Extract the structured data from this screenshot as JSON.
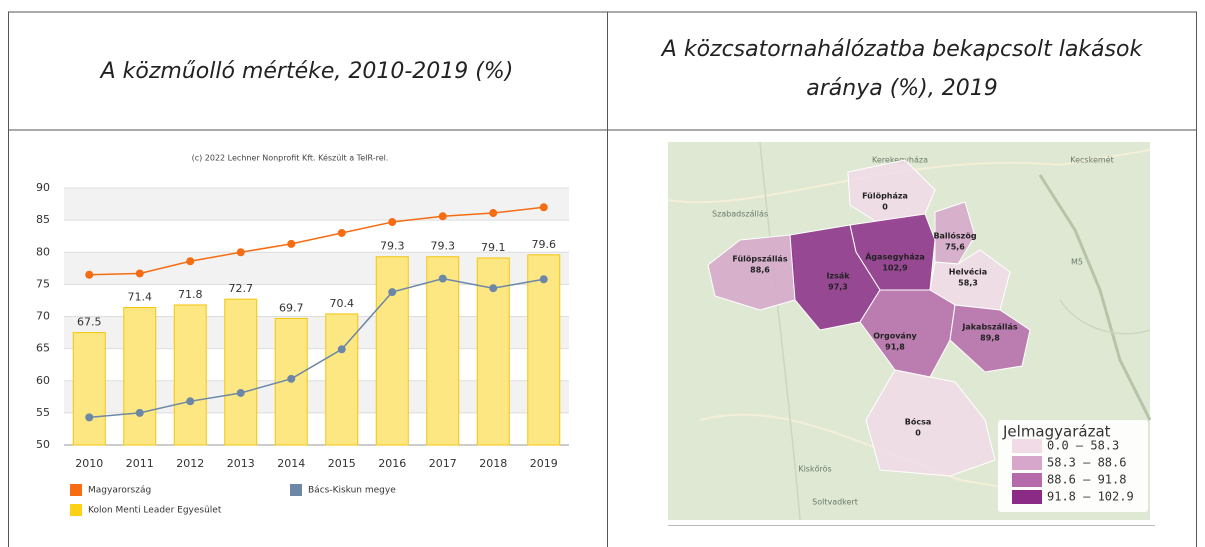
{
  "table": {
    "headers": [
      {
        "lines": [
          "A közműolló mértéke, 2010-2019 (%)"
        ]
      },
      {
        "lines": [
          "A közcsatornahálózatba bekapcsolt lakások",
          "aránya (%), 2019"
        ]
      }
    ]
  },
  "chart_data": {
    "type": "bar",
    "source": "(c) 2022 Lechner Nonprofit Kft. Készült a TeIR-rel.",
    "categories": [
      "2010",
      "2011",
      "2012",
      "2013",
      "2014",
      "2015",
      "2016",
      "2017",
      "2018",
      "2019"
    ],
    "series": [
      {
        "name": "Magyarország",
        "type": "line",
        "color": "#f56c12",
        "values": [
          76.5,
          76.7,
          78.6,
          80.0,
          81.3,
          83.0,
          84.7,
          85.6,
          86.1,
          87.0
        ]
      },
      {
        "name": "Bács-Kiskun megye",
        "type": "line",
        "color": "#6d87a6",
        "values": [
          54.3,
          55.0,
          56.8,
          58.1,
          60.3,
          64.9,
          73.8,
          75.9,
          74.4,
          75.8
        ]
      },
      {
        "name": "Kolon Menti Leader Egyesület",
        "type": "bar",
        "color": "#fde783",
        "values": [
          67.5,
          71.4,
          71.8,
          72.7,
          69.7,
          70.4,
          79.3,
          79.3,
          79.1,
          79.6
        ]
      }
    ],
    "ylim": [
      50,
      90
    ],
    "yticks": [
      50,
      55,
      60,
      65,
      70,
      75,
      80,
      85,
      90
    ],
    "grid": true
  },
  "map": {
    "places": [
      "Kerekegyháza",
      "Kecskemét",
      "Szabadszállás",
      "M5",
      "Kiskőrös",
      "Soltvadkert"
    ],
    "regions": [
      {
        "name": "Fülöpháza",
        "value": 0,
        "value_label": "0"
      },
      {
        "name": "Fülöpszállás",
        "value": 88.6,
        "value_label": "88,6"
      },
      {
        "name": "Ágasegyháza",
        "value": 102.9,
        "value_label": "102,9"
      },
      {
        "name": "Izsák",
        "value": 97.3,
        "value_label": "97,3"
      },
      {
        "name": "Ballószög",
        "value": 75.6,
        "value_label": "75,6"
      },
      {
        "name": "Helvécia",
        "value": 58.3,
        "value_label": "58,3"
      },
      {
        "name": "Orgovány",
        "value": 91.8,
        "value_label": "91,8"
      },
      {
        "name": "Jakabszállás",
        "value": 89.8,
        "value_label": "89,8"
      },
      {
        "name": "Bócsa",
        "value": 0,
        "value_label": "0"
      }
    ],
    "legend": {
      "title": "Jelmagyarázat",
      "items": [
        {
          "min": 0,
          "max": 58.3,
          "label": "0.0 –  58.3",
          "color": "#f1dbe7"
        },
        {
          "min": 58.3,
          "max": 88.6,
          "label": "58.3 –  88.6",
          "color": "#d6a7ca"
        },
        {
          "min": 88.6,
          "max": 91.8,
          "label": "88.6 –  91.8",
          "color": "#b56aa9"
        },
        {
          "min": 91.8,
          "max": 102.9,
          "label": "91.8 – 102.9",
          "color": "#8b2b86"
        }
      ]
    }
  }
}
